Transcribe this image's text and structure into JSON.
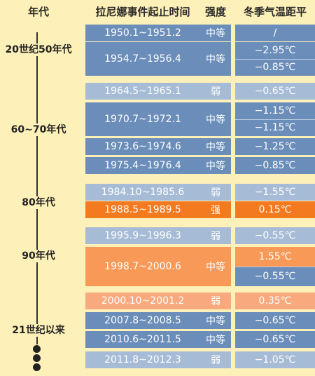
{
  "headers": {
    "era": "年代",
    "period": "拉尼娜事件起止时间",
    "intensity": "强度",
    "temp": "冬季气温距平"
  },
  "eras": [
    "20世纪50年代",
    "60~70年代",
    "80年代",
    "90年代",
    "21世纪以来"
  ],
  "colors": {
    "background": "#fdf0b8",
    "blue": "#6a8db9",
    "light_blue": "#a6bbd6",
    "strong_orange": "#f47a20",
    "orange": "#f89958",
    "light_orange": "#f8aa7e"
  },
  "rows": [
    {
      "period": "1950.1~1951.2",
      "intensity": "中等",
      "temp": [
        "/"
      ]
    },
    {
      "period": "1954.7~1956.4",
      "intensity": "中等",
      "temp": [
        "−2.95℃",
        "−0.85℃"
      ]
    },
    {
      "period": "1964.5~1965.1",
      "intensity": "弱",
      "temp": [
        "−0.65℃"
      ]
    },
    {
      "period": "1970.7~1972.1",
      "intensity": "中等",
      "temp": [
        "−1.15℃",
        "−1.15℃"
      ]
    },
    {
      "period": "1973.6~1974.6",
      "intensity": "中等",
      "temp": [
        "−1.25℃"
      ]
    },
    {
      "period": "1975.4~1976.4",
      "intensity": "中等",
      "temp": [
        "−0.85℃"
      ]
    },
    {
      "period": "1984.10~1985.6",
      "intensity": "弱",
      "temp": [
        "−1.55℃"
      ]
    },
    {
      "period": "1988.5~1989.5",
      "intensity": "强",
      "temp": [
        "0.15℃"
      ]
    },
    {
      "period": "1995.9~1996.3",
      "intensity": "弱",
      "temp": [
        "−0.55℃"
      ]
    },
    {
      "period": "1998.7~2000.6",
      "intensity": "中等",
      "temp": [
        "1.55℃",
        "−0.55℃"
      ]
    },
    {
      "period": "2000.10~2001.2",
      "intensity": "弱",
      "temp": [
        "0.35℃"
      ]
    },
    {
      "period": "2007.8~2008.5",
      "intensity": "中等",
      "temp": [
        "−0.65℃"
      ]
    },
    {
      "period": "2010.6~2011.5",
      "intensity": "中等",
      "temp": [
        "−0.65℃"
      ]
    },
    {
      "period": "2011.8~2012.3",
      "intensity": "弱",
      "temp": [
        "−1.05℃"
      ]
    }
  ]
}
